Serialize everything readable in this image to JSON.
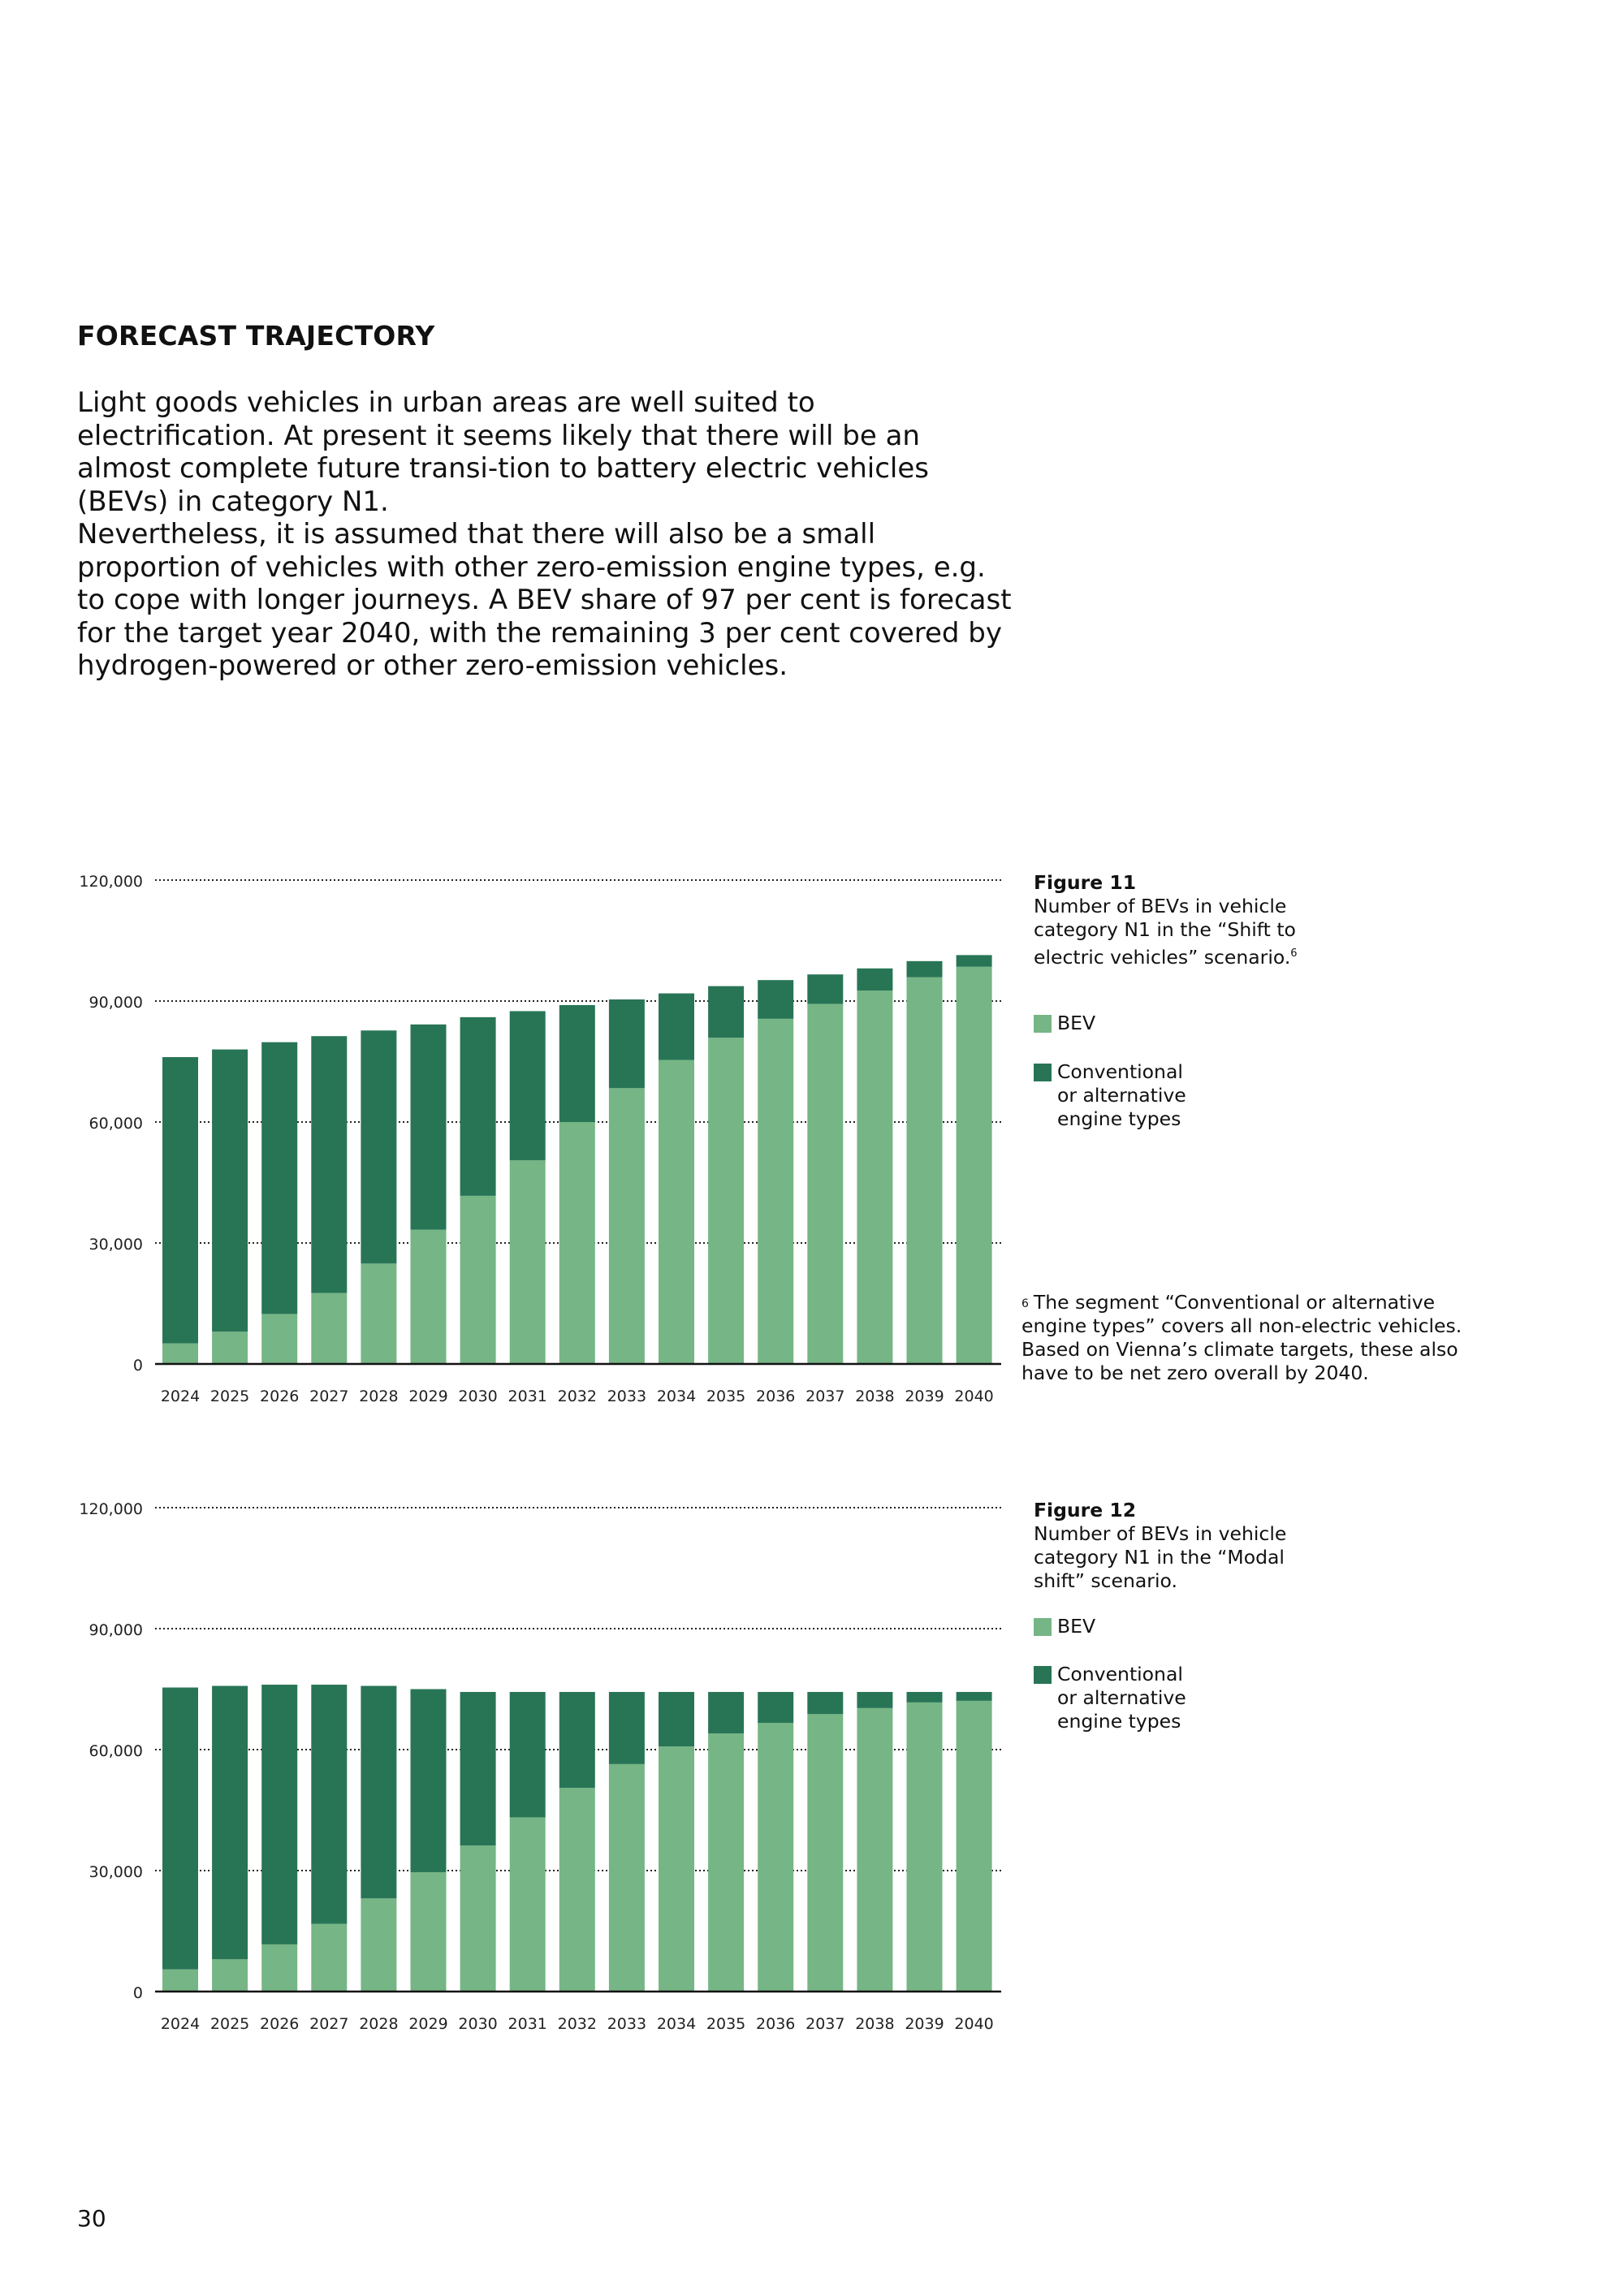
{
  "heading": "FORECAST TRAJECTORY",
  "paragraphs": [
    "Light goods vehicles in urban areas are well suited to electrification. At present it seems likely that there will be an almost complete future transi-tion to battery electric vehicles (BEVs) in category N1.",
    "Nevertheless, it is assumed that there will also be a small proportion of vehicles with other zero-emission engine types, e.g. to cope with longer journeys. A BEV share of 97 per cent is forecast for the target year 2040, with the remaining 3 per cent covered by hydrogen-powered or other zero-emission vehicles."
  ],
  "colors": {
    "bev": "#76b585",
    "conventional": "#287556"
  },
  "figures": [
    {
      "title": "Figure 11",
      "caption": "Number of BEVs in vehicle category N1 in the “Shift to electric vehicles” scenario.",
      "footnote_ref": "6",
      "legend": {
        "bev": "BEV",
        "conventional": "Conventional or alternative engine types"
      }
    },
    {
      "title": "Figure 12",
      "caption": "Number of BEVs in vehicle category N1 in the “Modal shift” scenario.",
      "legend": {
        "bev": "BEV",
        "conventional": "Conventional or alternative engine types"
      }
    }
  ],
  "footnote": {
    "marker": "6",
    "text": "The segment “Conventional or alternative engine types” covers all non-electric vehicles. Based on Vienna’s climate targets, these also have to be net zero overall by 2040."
  },
  "page_number": "30",
  "chart_data": [
    {
      "type": "bar",
      "stacked": true,
      "title": "Figure 11",
      "categories": [
        "2024",
        "2025",
        "2026",
        "2027",
        "2028",
        "2029",
        "2030",
        "2031",
        "2032",
        "2033",
        "2034",
        "2035",
        "2036",
        "2037",
        "2038",
        "2039",
        "2040"
      ],
      "series": [
        {
          "name": "BEV",
          "values": [
            5100,
            8000,
            12400,
            17600,
            24900,
            33300,
            41700,
            50500,
            60000,
            68400,
            75400,
            80900,
            85600,
            89300,
            92600,
            95900,
            98500
          ]
        },
        {
          "name": "Conventional or alternative engine types",
          "values": [
            71000,
            70000,
            67400,
            63700,
            57800,
            50900,
            44300,
            37000,
            29000,
            22000,
            16500,
            12800,
            9600,
            7300,
            5500,
            4000,
            2900
          ]
        }
      ],
      "yticks": [
        0,
        30000,
        60000,
        90000,
        120000
      ],
      "ytick_labels": [
        "0",
        "30,000",
        "60,000",
        "90,000",
        "120,000"
      ],
      "ylim": [
        0,
        120000
      ],
      "grid": true,
      "xlabel": "",
      "ylabel": ""
    },
    {
      "type": "bar",
      "stacked": true,
      "title": "Figure 12",
      "categories": [
        "2024",
        "2025",
        "2026",
        "2027",
        "2028",
        "2029",
        "2030",
        "2031",
        "2032",
        "2033",
        "2034",
        "2035",
        "2036",
        "2037",
        "2038",
        "2039",
        "2040"
      ],
      "series": [
        {
          "name": "BEV",
          "values": [
            5500,
            8000,
            11700,
            16800,
            23100,
            29600,
            36200,
            43200,
            50500,
            56400,
            60800,
            64000,
            66600,
            68800,
            70300,
            71700,
            72100
          ]
        },
        {
          "name": "Conventional or alternative engine types",
          "values": [
            69900,
            67800,
            64400,
            59300,
            52700,
            45400,
            38100,
            31100,
            23800,
            17900,
            13500,
            10300,
            7700,
            5500,
            4000,
            2600,
            2200
          ]
        }
      ],
      "yticks": [
        0,
        30000,
        60000,
        90000,
        120000
      ],
      "ytick_labels": [
        "0",
        "30,000",
        "60,000",
        "90,000",
        "120,000"
      ],
      "ylim": [
        0,
        120000
      ],
      "grid": true,
      "xlabel": "",
      "ylabel": ""
    }
  ]
}
